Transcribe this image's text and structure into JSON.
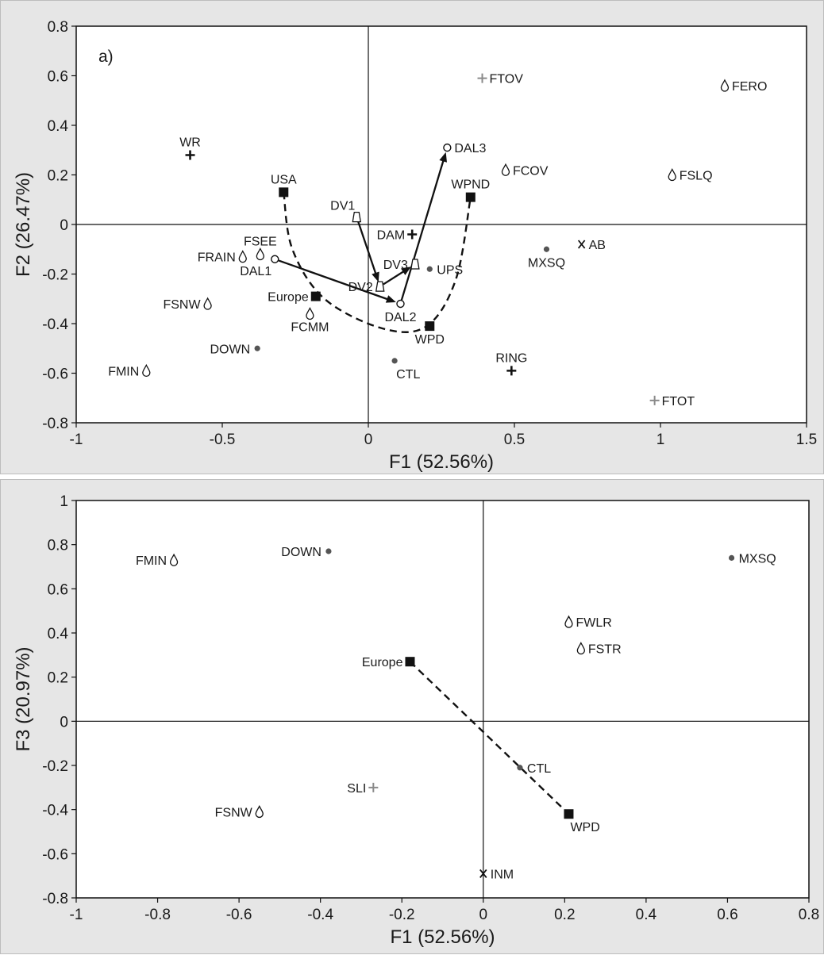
{
  "chart_data": [
    {
      "type": "scatter",
      "panel_label": "a)",
      "xlabel": "F1 (52.56%)",
      "ylabel": "F2 (26.47%)",
      "xlim": [
        -1,
        1.5
      ],
      "ylim": [
        -0.8,
        0.8
      ],
      "x_ticks": [
        -1,
        -0.5,
        0,
        0.5,
        1,
        1.5
      ],
      "y_ticks": [
        -0.8,
        -0.6,
        -0.4,
        -0.2,
        0,
        0.2,
        0.4,
        0.6,
        0.8
      ],
      "x_tick_labels": [
        "-1",
        "-0.5",
        "0",
        "0.5",
        "1",
        "1.5"
      ],
      "y_tick_labels": [
        "-0.8",
        "-0.6",
        "-0.4",
        "-0.2",
        "0",
        "0.2",
        "0.4",
        "0.6",
        "0.8"
      ],
      "points": [
        {
          "label": "FTOV",
          "x": 0.39,
          "y": 0.59,
          "marker": "grey-plus",
          "pos": "right"
        },
        {
          "label": "FERO",
          "x": 1.22,
          "y": 0.56,
          "marker": "drop",
          "pos": "right"
        },
        {
          "label": "WR",
          "x": -0.61,
          "y": 0.28,
          "marker": "plus",
          "pos": "above"
        },
        {
          "label": "FCOV",
          "x": 0.47,
          "y": 0.22,
          "marker": "drop",
          "pos": "right"
        },
        {
          "label": "FSLQ",
          "x": 1.04,
          "y": 0.2,
          "marker": "drop",
          "pos": "right"
        },
        {
          "label": "USA",
          "x": -0.29,
          "y": 0.13,
          "marker": "square",
          "pos": "above"
        },
        {
          "label": "WPND",
          "x": 0.35,
          "y": 0.11,
          "marker": "square",
          "pos": "above"
        },
        {
          "label": "DAM",
          "x": 0.15,
          "y": -0.04,
          "marker": "plus",
          "pos": "left"
        },
        {
          "label": "AB",
          "x": 0.73,
          "y": -0.08,
          "marker": "x",
          "pos": "right"
        },
        {
          "label": "MXSQ",
          "x": 0.61,
          "y": -0.1,
          "marker": "dot",
          "pos": "below"
        },
        {
          "label": "FRAIN",
          "x": -0.43,
          "y": -0.13,
          "marker": "drop",
          "pos": "left"
        },
        {
          "label": "FSEE",
          "x": -0.37,
          "y": -0.12,
          "marker": "drop",
          "pos": "above"
        },
        {
          "label": "UPS",
          "x": 0.21,
          "y": -0.18,
          "marker": "dot",
          "pos": "right"
        },
        {
          "label": "Europe",
          "x": -0.18,
          "y": -0.29,
          "marker": "square",
          "pos": "left"
        },
        {
          "label": "FSNW",
          "x": -0.55,
          "y": -0.32,
          "marker": "drop",
          "pos": "left"
        },
        {
          "label": "FCMM",
          "x": -0.2,
          "y": -0.36,
          "marker": "drop",
          "pos": "below"
        },
        {
          "label": "WPD",
          "x": 0.21,
          "y": -0.41,
          "marker": "square",
          "pos": "below"
        },
        {
          "label": "DOWN",
          "x": -0.38,
          "y": -0.5,
          "marker": "dot",
          "pos": "left"
        },
        {
          "label": "CTL",
          "x": 0.09,
          "y": -0.55,
          "marker": "dot",
          "pos": "below-right"
        },
        {
          "label": "FMIN",
          "x": -0.76,
          "y": -0.59,
          "marker": "drop",
          "pos": "left"
        },
        {
          "label": "RING",
          "x": 0.49,
          "y": -0.59,
          "marker": "plus",
          "pos": "above"
        },
        {
          "label": "FTOT",
          "x": 0.98,
          "y": -0.71,
          "marker": "grey-plus",
          "pos": "right"
        }
      ],
      "trajectory_points": [
        {
          "label": "DAL1",
          "x": -0.32,
          "y": -0.14,
          "marker": "circle",
          "pos": "below-left"
        },
        {
          "label": "DAL2",
          "x": 0.11,
          "y": -0.32,
          "marker": "circle",
          "pos": "below"
        },
        {
          "label": "DAL3",
          "x": 0.27,
          "y": 0.31,
          "marker": "circle",
          "pos": "right"
        },
        {
          "label": "DV1",
          "x": -0.04,
          "y": 0.03,
          "marker": "triangle",
          "pos": "above-left"
        },
        {
          "label": "DV2",
          "x": 0.04,
          "y": -0.25,
          "marker": "triangle",
          "pos": "left"
        },
        {
          "label": "DV3",
          "x": 0.16,
          "y": -0.16,
          "marker": "triangle",
          "pos": "left"
        }
      ],
      "arrows": [
        {
          "from": "DAL1",
          "to": "DAL2"
        },
        {
          "from": "DAL2",
          "to": "DAL3"
        },
        {
          "from": "DV1",
          "to": "DV2"
        },
        {
          "from": "DV2",
          "to": "DV3"
        }
      ],
      "dashed_curve": [
        [
          -0.29,
          0.13
        ],
        [
          -0.26,
          -0.1
        ],
        [
          -0.15,
          -0.3
        ],
        [
          0.05,
          -0.42
        ],
        [
          0.2,
          -0.41
        ],
        [
          0.3,
          -0.22
        ],
        [
          0.35,
          0.11
        ]
      ]
    },
    {
      "type": "scatter",
      "xlabel": "F1 (52.56%)",
      "ylabel": "F3 (20.97%)",
      "xlim": [
        -1,
        0.8
      ],
      "ylim": [
        -0.8,
        1
      ],
      "x_ticks": [
        -1,
        -0.8,
        -0.6,
        -0.4,
        -0.2,
        0,
        0.2,
        0.4,
        0.6,
        0.8
      ],
      "y_ticks": [
        -0.8,
        -0.6,
        -0.4,
        -0.2,
        0,
        0.2,
        0.4,
        0.6,
        0.8,
        1
      ],
      "x_tick_labels": [
        "-1",
        "-0.8",
        "-0.6",
        "-0.4",
        "-0.2",
        "0",
        "0.2",
        "0.4",
        "0.6",
        "0.8"
      ],
      "y_tick_labels": [
        "-0.8",
        "-0.6",
        "-0.4",
        "-0.2",
        "0",
        "0.2",
        "0.4",
        "0.6",
        "0.8",
        "1"
      ],
      "points": [
        {
          "label": "FMIN",
          "x": -0.76,
          "y": 0.73,
          "marker": "drop",
          "pos": "left"
        },
        {
          "label": "DOWN",
          "x": -0.38,
          "y": 0.77,
          "marker": "dot",
          "pos": "left"
        },
        {
          "label": "MXSQ",
          "x": 0.61,
          "y": 0.74,
          "marker": "dot",
          "pos": "right"
        },
        {
          "label": "FWLR",
          "x": 0.21,
          "y": 0.45,
          "marker": "drop",
          "pos": "right"
        },
        {
          "label": "FSTR",
          "x": 0.24,
          "y": 0.33,
          "marker": "drop",
          "pos": "right"
        },
        {
          "label": "Europe",
          "x": -0.18,
          "y": 0.27,
          "marker": "square",
          "pos": "left"
        },
        {
          "label": "CTL",
          "x": 0.09,
          "y": -0.21,
          "marker": "dot",
          "pos": "right"
        },
        {
          "label": "SLI",
          "x": -0.27,
          "y": -0.3,
          "marker": "grey-plus",
          "pos": "left"
        },
        {
          "label": "FSNW",
          "x": -0.55,
          "y": -0.41,
          "marker": "drop",
          "pos": "left"
        },
        {
          "label": "WPD",
          "x": 0.21,
          "y": -0.42,
          "marker": "square",
          "pos": "below-right"
        },
        {
          "label": "INM",
          "x": 0,
          "y": -0.69,
          "marker": "x",
          "pos": "right"
        }
      ],
      "dashed_line": [
        [
          -0.18,
          0.27
        ],
        [
          0.21,
          -0.42
        ]
      ]
    }
  ]
}
